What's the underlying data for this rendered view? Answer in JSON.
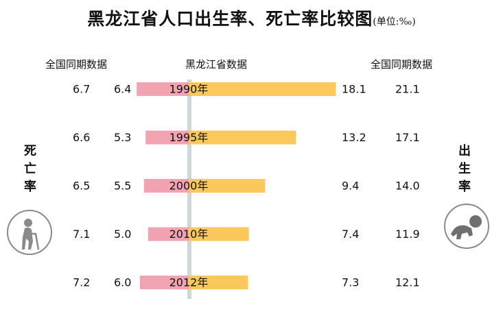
{
  "title": "黑龙江省人口出生率、死亡率比较图",
  "unit": "(单位:‰)",
  "headers": {
    "national_left": "全国同期数据",
    "province": "黑龙江省数据",
    "national_right": "全国同期数据"
  },
  "side_labels": {
    "death": "死亡率",
    "birth": "出生率"
  },
  "icons": {
    "death": "elderly-person-icon",
    "birth": "crawling-baby-icon"
  },
  "colors": {
    "death_bar": "#f2a3b2",
    "birth_bar": "#fbc95b",
    "axis": "#cfd8d8"
  },
  "chart_data": {
    "type": "bar",
    "title": "黑龙江省人口出生率、死亡率比较图",
    "unit": "‰",
    "categories": [
      "1990年",
      "1995年",
      "2000年",
      "2010年",
      "2012年"
    ],
    "series": [
      {
        "name": "死亡率",
        "region": "黑龙江省",
        "values": [
          6.4,
          5.3,
          5.5,
          5.0,
          6.0
        ]
      },
      {
        "name": "出生率",
        "region": "黑龙江省",
        "values": [
          18.1,
          13.2,
          9.4,
          7.4,
          7.3
        ]
      }
    ],
    "national_comparison": {
      "死亡率": [
        6.7,
        6.6,
        6.5,
        7.1,
        7.2
      ],
      "出生率": [
        21.1,
        17.1,
        14.0,
        11.9,
        12.1
      ]
    }
  }
}
